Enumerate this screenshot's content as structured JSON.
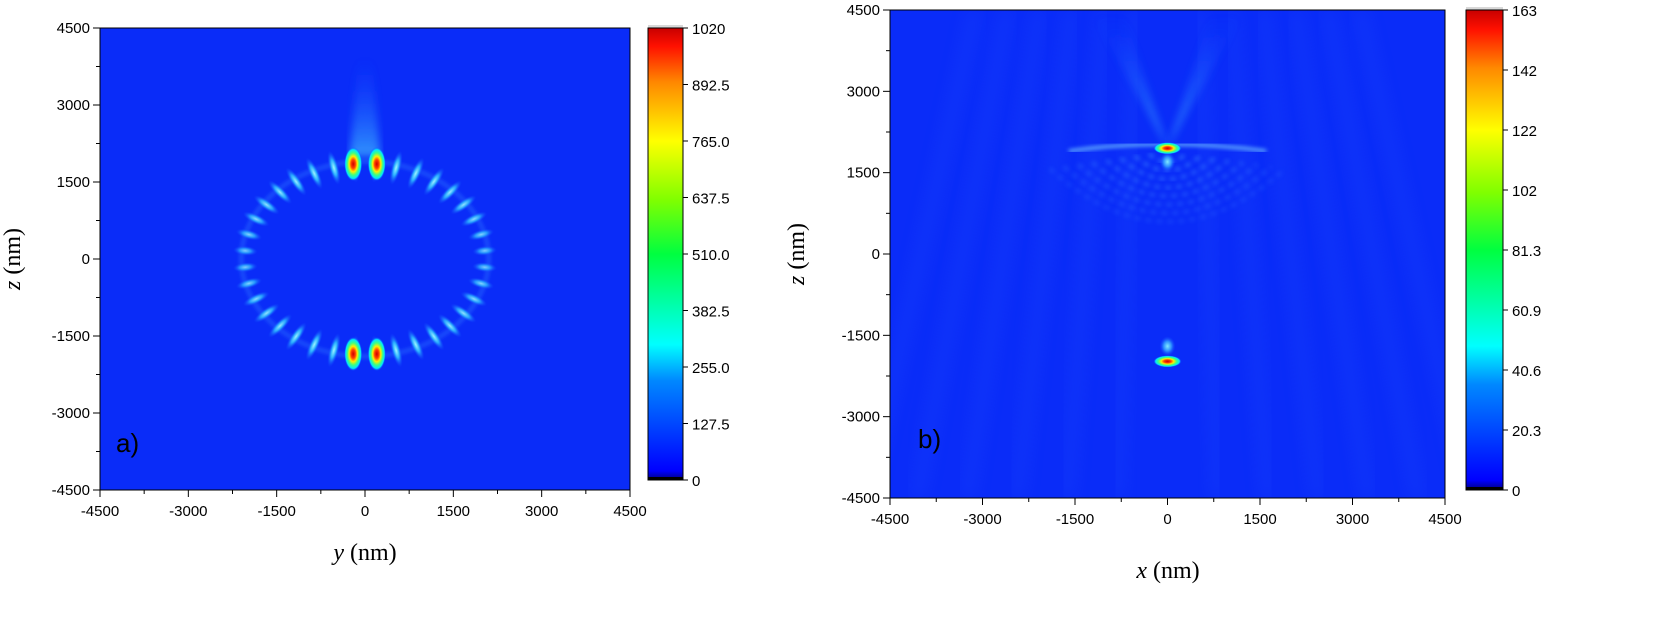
{
  "chart_data": [
    {
      "type": "heatmap",
      "panel_label": "a)",
      "xlabel_var": "y",
      "xlabel_unit": " (nm)",
      "ylabel_var": "z",
      "ylabel_unit": " (nm)",
      "xlim": [
        -4500,
        4500
      ],
      "ylim": [
        -4500,
        4500
      ],
      "x_ticks": [
        "-4500",
        "-3000",
        "-1500",
        "0",
        "1500",
        "3000",
        "4500"
      ],
      "y_ticks": [
        "4500",
        "3000",
        "1500",
        "0",
        "-1500",
        "-3000",
        "-4500"
      ],
      "colorbar": {
        "min": 0,
        "max": 1020,
        "tick_labels": [
          "1020",
          "892.5",
          "765.0",
          "637.5",
          "510.0",
          "382.5",
          "255.0",
          "127.5",
          "0"
        ]
      },
      "features": {
        "ring": {
          "center": [
            0,
            0
          ],
          "radius_x": 2100,
          "radius_z": 1900,
          "lobes": 36
        },
        "hotspots": [
          [
            -200,
            1850
          ],
          [
            200,
            1850
          ],
          [
            -200,
            -1850
          ],
          [
            200,
            -1850
          ]
        ],
        "beam": {
          "from_z": 2000,
          "to_z": 3900,
          "direction": "up"
        }
      }
    },
    {
      "type": "heatmap",
      "panel_label": "b)",
      "xlabel_var": "x",
      "xlabel_unit": " (nm)",
      "ylabel_var": "z",
      "ylabel_unit": " (nm)",
      "xlim": [
        -4500,
        4500
      ],
      "ylim": [
        -4500,
        4500
      ],
      "x_ticks": [
        "-4500",
        "-3000",
        "-1500",
        "0",
        "1500",
        "3000",
        "4500"
      ],
      "y_ticks": [
        "4500",
        "3000",
        "1500",
        "0",
        "-1500",
        "-3000",
        "-4500"
      ],
      "colorbar": {
        "min": 0,
        "max": 163,
        "tick_labels": [
          "163",
          "142",
          "122",
          "102",
          "81.3",
          "60.9",
          "40.6",
          "20.3",
          "0"
        ]
      },
      "features": {
        "hotspots": [
          [
            0,
            1950
          ],
          [
            0,
            -1980
          ]
        ],
        "secondary_spots": [
          [
            0,
            1700
          ],
          [
            0,
            -1700
          ]
        ],
        "arc": {
          "center": [
            0,
            1900
          ],
          "direction": "down"
        },
        "beams": "v-shaped upward from top hotspot"
      }
    }
  ],
  "colors": {
    "background_field": "#0a2cf8",
    "colormap": [
      "#00003c",
      "#0000ff",
      "#00bfff",
      "#00ffff",
      "#00ff00",
      "#ffff00",
      "#ffa500",
      "#ff0000",
      "#b00000"
    ]
  }
}
